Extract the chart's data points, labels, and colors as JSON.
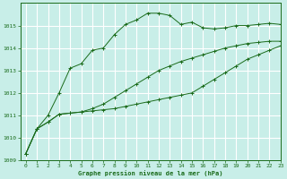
{
  "background_color": "#c8eee8",
  "grid_color": "#ffffff",
  "line_color": "#1a6b1a",
  "xlabel": "Graphe pression niveau de la mer (hPa)",
  "xlim": [
    -0.5,
    23
  ],
  "ylim": [
    1009,
    1016
  ],
  "yticks": [
    1009,
    1010,
    1011,
    1012,
    1013,
    1014,
    1015
  ],
  "xticks": [
    0,
    1,
    2,
    3,
    4,
    5,
    6,
    7,
    8,
    9,
    10,
    11,
    12,
    13,
    14,
    15,
    16,
    17,
    18,
    19,
    20,
    21,
    22,
    23
  ],
  "series": [
    {
      "x": [
        0,
        1,
        2,
        3,
        4,
        5,
        6,
        7,
        8,
        9,
        10,
        11,
        12,
        13,
        14,
        15,
        16,
        17,
        18,
        19,
        20,
        21,
        22,
        23
      ],
      "y": [
        1009.3,
        1010.4,
        1010.7,
        1011.05,
        1011.1,
        1011.15,
        1011.2,
        1011.25,
        1011.3,
        1011.4,
        1011.5,
        1011.6,
        1011.7,
        1011.8,
        1011.9,
        1012.0,
        1012.3,
        1012.6,
        1012.9,
        1013.2,
        1013.5,
        1013.7,
        1013.9,
        1014.1
      ]
    },
    {
      "x": [
        0,
        1,
        2,
        3,
        4,
        5,
        6,
        7,
        8,
        9,
        10,
        11,
        12,
        13,
        14,
        15,
        16,
        17,
        18,
        19,
        20,
        21,
        22,
        23
      ],
      "y": [
        1009.3,
        1010.4,
        1010.7,
        1011.05,
        1011.1,
        1011.15,
        1011.3,
        1011.5,
        1011.8,
        1012.1,
        1012.4,
        1012.7,
        1013.0,
        1013.2,
        1013.4,
        1013.55,
        1013.7,
        1013.85,
        1014.0,
        1014.1,
        1014.2,
        1014.25,
        1014.3,
        1014.3
      ]
    },
    {
      "x": [
        0,
        1,
        2,
        3,
        4,
        5,
        6,
        7,
        8,
        9,
        10,
        11,
        12,
        13,
        14,
        15,
        16,
        17,
        18,
        19,
        20,
        21,
        22,
        23
      ],
      "y": [
        1009.3,
        1010.4,
        1011.0,
        1012.0,
        1013.1,
        1013.3,
        1013.9,
        1014.0,
        1014.6,
        1015.05,
        1015.25,
        1015.55,
        1015.55,
        1015.45,
        1015.05,
        1015.15,
        1014.9,
        1014.85,
        1014.9,
        1015.0,
        1015.0,
        1015.05,
        1015.1,
        1015.05
      ]
    }
  ]
}
